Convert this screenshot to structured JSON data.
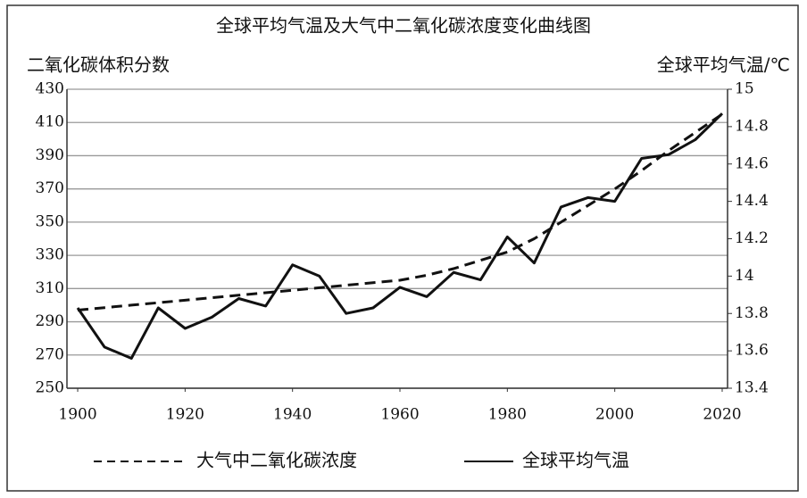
{
  "chart_data": {
    "type": "line",
    "title": "全球平均气温及大气中二氧化碳浓度变化曲线图",
    "y_label": "二氧化碳体积分数",
    "y2_label": "全球平均气温/℃",
    "x": [
      1900,
      1905,
      1910,
      1915,
      1920,
      1925,
      1930,
      1935,
      1940,
      1945,
      1950,
      1955,
      1960,
      1965,
      1970,
      1975,
      1980,
      1985,
      1990,
      1995,
      2000,
      2005,
      2010,
      2015,
      2020
    ],
    "xlim": [
      1898,
      2021
    ],
    "xticks": [
      1900,
      1920,
      1940,
      1960,
      1980,
      2000,
      2020
    ],
    "ylim": [
      250,
      430
    ],
    "yticks": [
      250,
      270,
      290,
      310,
      330,
      350,
      370,
      390,
      410,
      430
    ],
    "y2lim": [
      13.4,
      15
    ],
    "y2ticks": [
      13.4,
      13.6,
      13.8,
      14,
      14.2,
      14.4,
      14.6,
      14.8,
      15
    ],
    "grid": true,
    "series": [
      {
        "name": "大气中二氧化碳浓度",
        "color": "#111111",
        "dash": true,
        "values": [
          297,
          298.5,
          300,
          301.5,
          303,
          304.5,
          306,
          307.5,
          309,
          310.5,
          312,
          313.5,
          315,
          318,
          322,
          327,
          332,
          340,
          350,
          360,
          370,
          381,
          393,
          404,
          415
        ]
      },
      {
        "name": "全球平均气温",
        "color": "#111111",
        "axis": "y2",
        "dash": false,
        "values": [
          13.83,
          13.62,
          13.56,
          13.83,
          13.72,
          13.78,
          13.88,
          13.84,
          14.06,
          14.0,
          13.8,
          13.83,
          13.94,
          13.89,
          14.02,
          13.98,
          14.21,
          14.07,
          14.37,
          14.42,
          14.4,
          14.63,
          14.65,
          14.73,
          14.87
        ]
      }
    ]
  }
}
